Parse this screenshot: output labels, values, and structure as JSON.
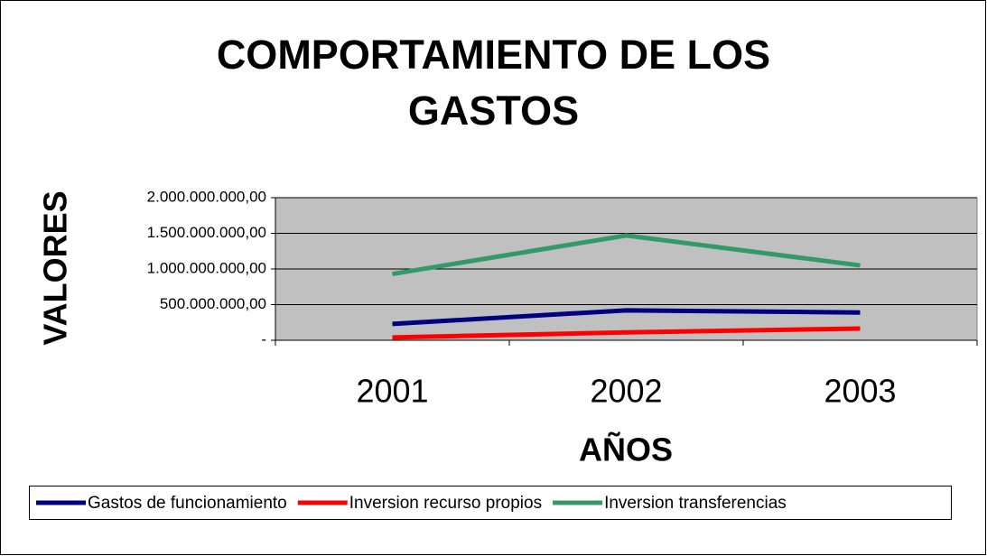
{
  "chart_data": {
    "type": "line",
    "title": "COMPORTAMIENTO DE LOS GASTOS",
    "x_label": "AÑOS",
    "y_label": "VALORES",
    "categories": [
      "2001",
      "2002",
      "2003"
    ],
    "series": [
      {
        "name": "Gastos de funcionamiento",
        "color": "#000080",
        "values": [
          230000000,
          420000000,
          390000000
        ]
      },
      {
        "name": "Inversion recurso propios",
        "color": "#ff0000",
        "values": [
          40000000,
          110000000,
          165000000
        ]
      },
      {
        "name": "Inversion transferencias",
        "color": "#339966",
        "values": [
          930000000,
          1470000000,
          1050000000
        ]
      }
    ],
    "ylim": [
      0,
      2000000000
    ],
    "yticks": [
      {
        "value": 0,
        "label": "-"
      },
      {
        "value": 500000000,
        "label": "500.000.000,00"
      },
      {
        "value": 1000000000,
        "label": "1.000.000.000,00"
      },
      {
        "value": 1500000000,
        "label": "1.500.000.000,00"
      },
      {
        "value": 2000000000,
        "label": "2.000.000.000,00"
      }
    ],
    "grid": true,
    "legend": "bottom"
  }
}
